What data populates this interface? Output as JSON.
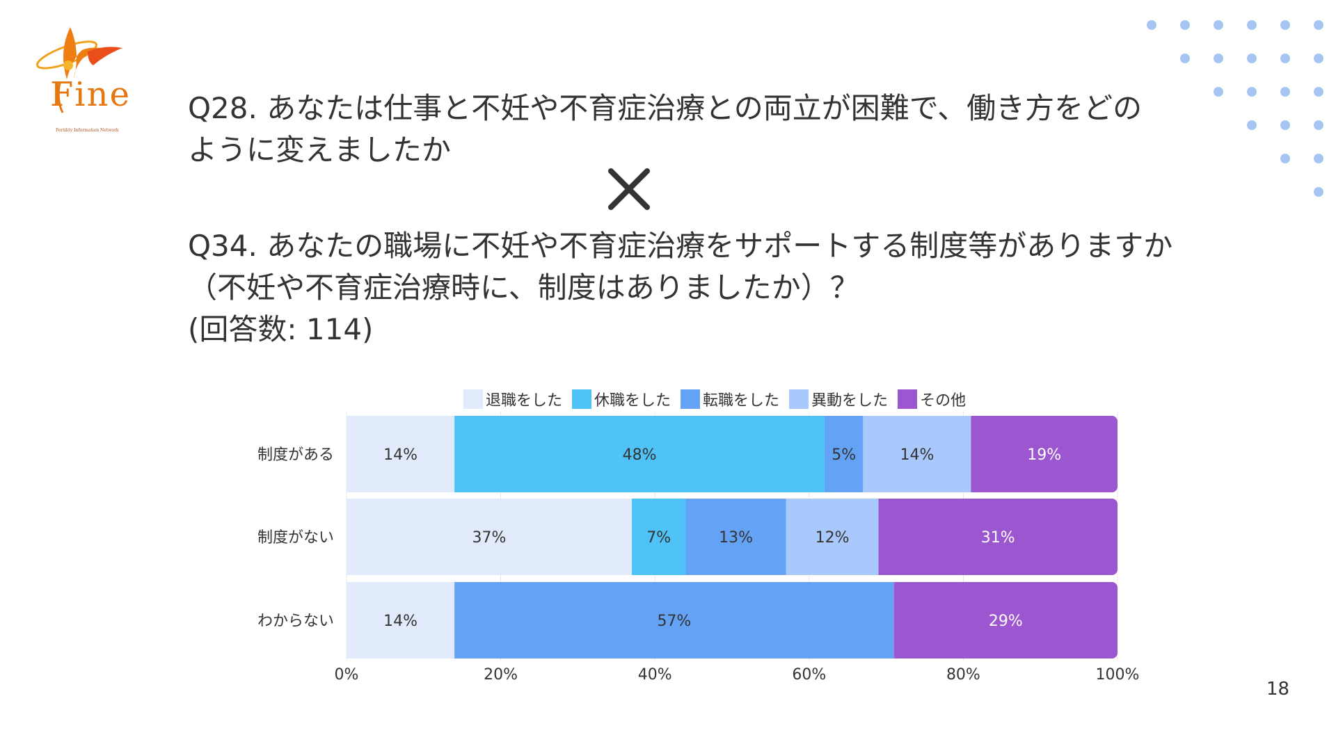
{
  "logo": {
    "word": "Fine",
    "subtitle": "Fertility Information Network"
  },
  "question1": {
    "line1": "Q28. あなたは仕事と不妊や不育症治療との両立が困難で、働き方をどの",
    "line2": "ように変えましたか"
  },
  "cross_symbol": "✕",
  "question2": {
    "line1": "Q34. あなたの職場に不妊や不育症治療をサポートする制度等がありますか",
    "line2": "（不妊や不育症治療時に、制度はありましたか）？"
  },
  "respondents": "(回答数: 114)",
  "page_number": "18",
  "colors": {
    "resign": "#e1ebfb",
    "leave": "#4fc3f7",
    "transfer_job": "#64a2f5",
    "reassign": "#a9c8fb",
    "other": "#9c56cf",
    "dots": "#a8c4f2"
  },
  "chart_data": {
    "type": "bar",
    "orientation": "horizontal",
    "stacked": true,
    "percent": true,
    "categories": [
      "制度がある",
      "制度がない",
      "わからない"
    ],
    "series": [
      {
        "name": "退職をした",
        "color": "#e1ebfb",
        "values": [
          14,
          37,
          14
        ]
      },
      {
        "name": "休職をした",
        "color": "#4fc3f7",
        "values": [
          48,
          7,
          0
        ]
      },
      {
        "name": "転職をした",
        "color": "#64a2f5",
        "values": [
          5,
          13,
          57
        ]
      },
      {
        "name": "異動をした",
        "color": "#a9c8fb",
        "values": [
          14,
          12,
          0
        ]
      },
      {
        "name": "その他",
        "color": "#9c56cf",
        "values": [
          19,
          31,
          29
        ]
      }
    ],
    "xlim": [
      0,
      100
    ],
    "xticks": [
      "0%",
      "20%",
      "40%",
      "60%",
      "80%",
      "100%"
    ],
    "legend_position": "top",
    "label_format": "{v}%"
  }
}
